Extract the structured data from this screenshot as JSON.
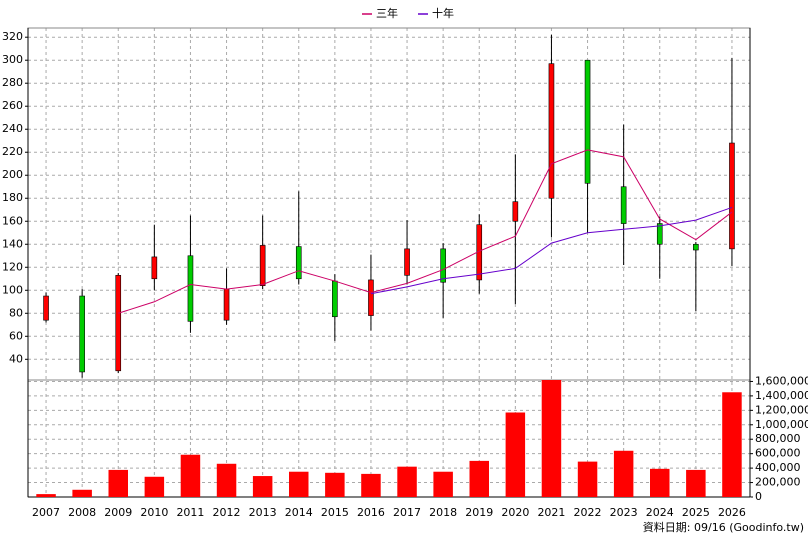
{
  "chart_data": {
    "type": "candlestick",
    "categories": [
      "2007",
      "2008",
      "2009",
      "2010",
      "2011",
      "2012",
      "2013",
      "2014",
      "2015",
      "2016",
      "2017",
      "2018",
      "2019",
      "2020",
      "2021",
      "2022",
      "2023",
      "2024",
      "2025",
      "2026"
    ],
    "open": [
      74,
      95,
      30,
      110,
      130,
      74,
      104,
      138,
      108,
      78,
      113,
      136,
      109,
      160,
      180,
      300,
      190,
      158,
      140,
      136
    ],
    "high": [
      98,
      101,
      115,
      157,
      165,
      119,
      165,
      186,
      114,
      131,
      161,
      141,
      166,
      218,
      322,
      300,
      244,
      164,
      142,
      302
    ],
    "low": [
      72,
      24,
      28,
      100,
      63,
      70,
      101,
      105,
      56,
      65,
      105,
      76,
      97,
      88,
      146,
      150,
      122,
      110,
      82,
      121
    ],
    "close": [
      95,
      29,
      113,
      129,
      73,
      101,
      139,
      110,
      77,
      109,
      136,
      107,
      157,
      177,
      297,
      193,
      158,
      140,
      135,
      228
    ],
    "up_color": "#ff0000",
    "down_color": "#00cc00",
    "series": [
      {
        "name": "三年",
        "color": "#cc0066",
        "values": [
          null,
          null,
          80,
          90,
          105,
          101,
          105,
          117,
          108,
          98,
          106,
          118,
          134,
          147,
          210,
          222,
          216,
          162,
          144,
          168
        ]
      },
      {
        "name": "十年",
        "color": "#6600cc",
        "values": [
          null,
          null,
          null,
          null,
          null,
          null,
          null,
          null,
          null,
          97,
          103,
          110,
          114,
          119,
          141,
          150,
          153,
          156,
          161,
          172
        ]
      }
    ],
    "ylim": [
      22,
      328
    ],
    "yticks": [
      40,
      60,
      80,
      100,
      120,
      140,
      160,
      180,
      200,
      220,
      240,
      260,
      280,
      300,
      320
    ],
    "grid": true,
    "volume": {
      "type": "bar",
      "color": "#ff0000",
      "values": [
        40000,
        100000,
        375000,
        280000,
        585000,
        460000,
        290000,
        350000,
        335000,
        320000,
        420000,
        350000,
        500000,
        1170000,
        1620000,
        490000,
        640000,
        390000,
        375000,
        1450000
      ],
      "ylim": [
        0,
        1620000
      ],
      "yticks": [
        {
          "value": 0,
          "label": "0"
        },
        {
          "value": 200000,
          "label": "200,000"
        },
        {
          "value": 400000,
          "label": "400,000"
        },
        {
          "value": 600000,
          "label": "600,000"
        },
        {
          "value": 800000,
          "label": "800,000"
        },
        {
          "value": 1000000,
          "label": "1,000,000"
        },
        {
          "value": 1200000,
          "label": "1,200,000"
        },
        {
          "value": 1400000,
          "label": "1,400,000"
        },
        {
          "value": 1600000,
          "label": "1,600,000"
        }
      ]
    },
    "note": "資料日期: 09/16 (Goodinfo.tw)"
  }
}
